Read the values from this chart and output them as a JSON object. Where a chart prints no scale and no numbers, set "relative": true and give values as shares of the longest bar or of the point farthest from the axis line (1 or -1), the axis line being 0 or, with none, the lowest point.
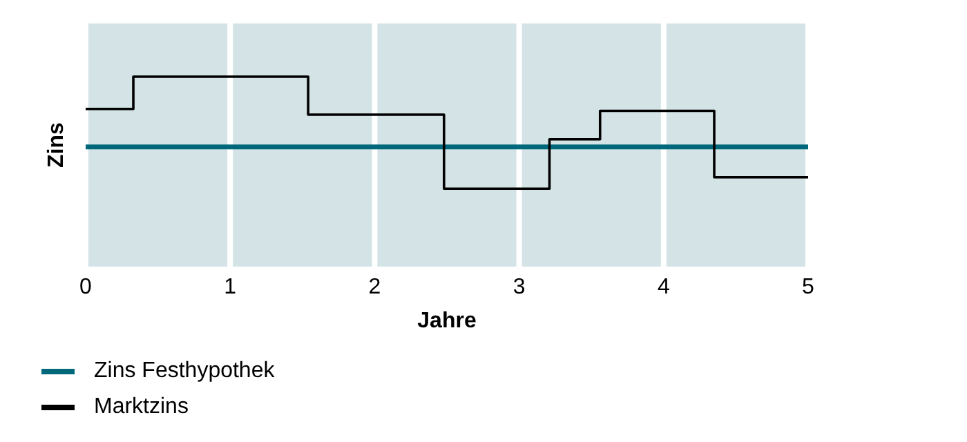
{
  "chart_data": {
    "type": "line",
    "xlabel": "Jahre",
    "ylabel": "Zins",
    "relative": true,
    "xlim": [
      0,
      5
    ],
    "xticks": [
      0,
      1,
      2,
      3,
      4,
      5
    ],
    "grid": "x",
    "legend": "bottom left",
    "series": [
      {
        "name": "Zins Festhypothek",
        "color": "#00687a",
        "type": "line",
        "x": [
          0,
          5
        ],
        "values": [
          0.63,
          0.63
        ]
      },
      {
        "name": "Marktzins",
        "color": "#000000",
        "type": "step",
        "x": [
          0,
          0.33,
          1.54,
          2.48,
          3.21,
          3.56,
          4.35,
          5
        ],
        "values": [
          0.83,
          1,
          0.8,
          0.41,
          0.67,
          0.82,
          0.47,
          0.47
        ]
      }
    ]
  }
}
